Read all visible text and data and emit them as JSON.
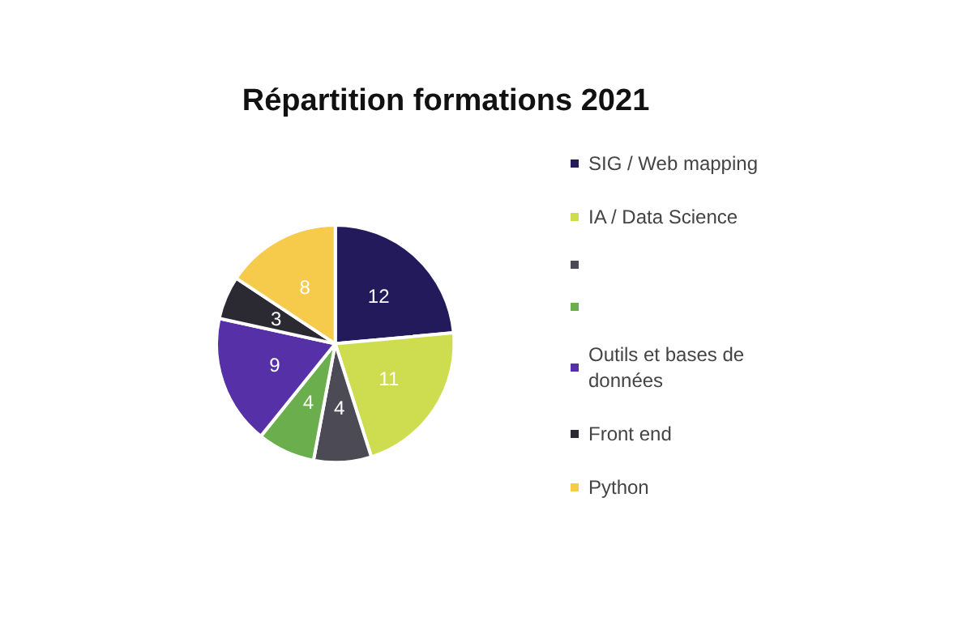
{
  "chart_data": {
    "type": "pie",
    "title": "Répartition formations 2021",
    "categories": [
      "SIG / Web mapping",
      "IA / Data Science",
      null,
      null,
      "Outils et bases de données",
      "Front end",
      "Python"
    ],
    "values": [
      12,
      11,
      4,
      4,
      9,
      3,
      8
    ],
    "colors": [
      "#221a5a",
      "#cedc4f",
      "#4b4a55",
      "#6aae4e",
      "#5630a6",
      "#2b2a33",
      "#f6ca4a"
    ],
    "data_labels": true,
    "legend": "right"
  }
}
